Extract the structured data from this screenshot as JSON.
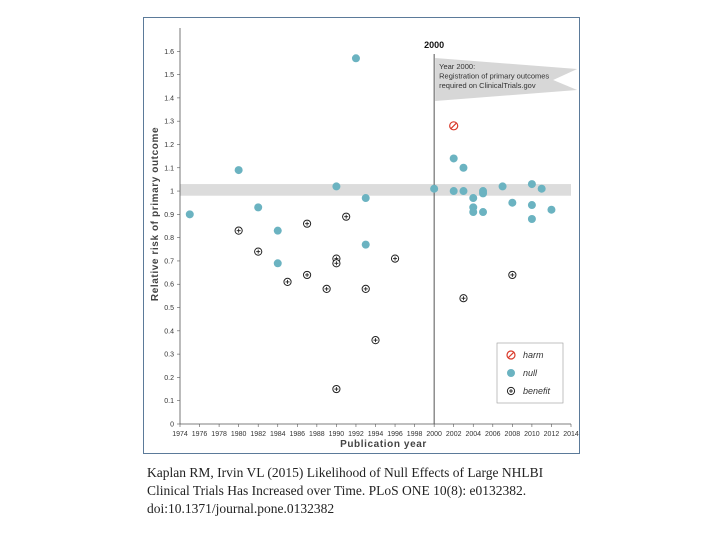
{
  "chart_data": {
    "type": "scatter",
    "xlabel": "Publication year",
    "ylabel": "Relative risk of primary outcome",
    "xlim": [
      1974,
      2014
    ],
    "ylim": [
      0,
      1.7
    ],
    "x_ticks": [
      "1974",
      "1976",
      "1978",
      "1980",
      "1982",
      "1984",
      "1986",
      "1988",
      "1990",
      "1992",
      "1994",
      "1996",
      "1998",
      "2000",
      "2002",
      "2004",
      "2006",
      "2008",
      "2010",
      "2012",
      "2014"
    ],
    "y_ticks": [
      "0",
      "0.1",
      "0.2",
      "0.3",
      "0.4",
      "0.5",
      "0.6",
      "0.7",
      "0.8",
      "0.9",
      "1",
      "1.1",
      "1.2",
      "1.3",
      "1.4",
      "1.5",
      "1.6"
    ],
    "null_band": [
      0.98,
      1.03
    ],
    "vertical_line": {
      "x": 2000,
      "label": "2000"
    },
    "annotation": [
      "Year 2000:",
      "Registration of primary outcomes",
      "required on ClinicalTrials.gov"
    ],
    "legend": [
      {
        "key": "harm",
        "label": "harm"
      },
      {
        "key": "null",
        "label": "null"
      },
      {
        "key": "benefit",
        "label": "benefit"
      }
    ],
    "series": [
      {
        "name": "harm",
        "color": "#d93a2b",
        "points": [
          [
            2002,
            1.28
          ]
        ]
      },
      {
        "name": "null",
        "color": "#6bb3c1",
        "points": [
          [
            1975,
            0.9
          ],
          [
            1980,
            1.09
          ],
          [
            1982,
            0.93
          ],
          [
            1984,
            0.83
          ],
          [
            1984,
            0.69
          ],
          [
            1990,
            1.02
          ],
          [
            1992,
            1.57
          ],
          [
            1993,
            0.97
          ],
          [
            1993,
            0.77
          ],
          [
            2000,
            1.01
          ],
          [
            2002,
            1.14
          ],
          [
            2002,
            1.0
          ],
          [
            2003,
            1.1
          ],
          [
            2003,
            1.0
          ],
          [
            2004,
            0.97
          ],
          [
            2004,
            0.93
          ],
          [
            2004,
            0.91
          ],
          [
            2005,
            1.0
          ],
          [
            2005,
            0.99
          ],
          [
            2005,
            0.91
          ],
          [
            2007,
            1.02
          ],
          [
            2008,
            0.95
          ],
          [
            2010,
            1.03
          ],
          [
            2010,
            0.94
          ],
          [
            2010,
            0.88
          ],
          [
            2011,
            1.01
          ],
          [
            2012,
            0.92
          ]
        ]
      },
      {
        "name": "benefit",
        "color": "#222222",
        "points": [
          [
            1980,
            0.83
          ],
          [
            1982,
            0.74
          ],
          [
            1985,
            0.61
          ],
          [
            1987,
            0.86
          ],
          [
            1987,
            0.64
          ],
          [
            1989,
            0.58
          ],
          [
            1990,
            0.71
          ],
          [
            1990,
            0.69
          ],
          [
            1990,
            0.15
          ],
          [
            1991,
            0.89
          ],
          [
            1993,
            0.58
          ],
          [
            1994,
            0.36
          ],
          [
            1996,
            0.71
          ],
          [
            2003,
            0.54
          ],
          [
            2008,
            0.64
          ]
        ]
      }
    ]
  },
  "caption": [
    "Kaplan RM, Irvin VL (2015) Likelihood of Null Effects of Large NHLBI",
    "Clinical Trials Has Increased over Time. PLoS ONE 10(8): e0132382.",
    "doi:10.1371/journal.pone.0132382"
  ]
}
